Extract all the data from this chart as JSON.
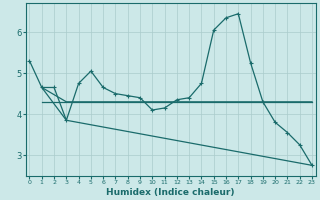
{
  "xlabel": "Humidex (Indice chaleur)",
  "bg_color": "#cce8e8",
  "grid_color": "#aacccc",
  "line_color": "#1a6b6b",
  "x_ticks": [
    0,
    1,
    2,
    3,
    4,
    5,
    6,
    7,
    8,
    9,
    10,
    11,
    12,
    13,
    14,
    15,
    16,
    17,
    18,
    19,
    20,
    21,
    22,
    23
  ],
  "y_ticks": [
    3,
    4,
    5,
    6
  ],
  "ylim": [
    2.5,
    6.7
  ],
  "xlim": [
    -0.3,
    23.3
  ],
  "curve1_x": [
    0,
    1,
    2,
    3,
    4,
    5,
    6,
    7,
    8,
    9,
    10,
    11,
    12,
    13,
    14,
    15,
    16,
    17,
    18,
    19,
    20,
    21,
    22,
    23
  ],
  "curve1_y": [
    5.3,
    4.65,
    4.65,
    3.85,
    4.75,
    5.05,
    4.65,
    4.5,
    4.45,
    4.4,
    4.1,
    4.15,
    4.35,
    4.4,
    4.75,
    6.05,
    6.35,
    6.45,
    5.25,
    4.3,
    3.8,
    3.55,
    3.25,
    2.75
  ],
  "curve2_x": [
    1,
    3,
    23
  ],
  "curve2_y": [
    4.65,
    4.3,
    4.3
  ],
  "curve3_x": [
    1,
    23
  ],
  "curve3_y": [
    4.3,
    4.3
  ],
  "curve4_x": [
    1,
    3,
    23
  ],
  "curve4_y": [
    4.65,
    3.85,
    2.75
  ]
}
